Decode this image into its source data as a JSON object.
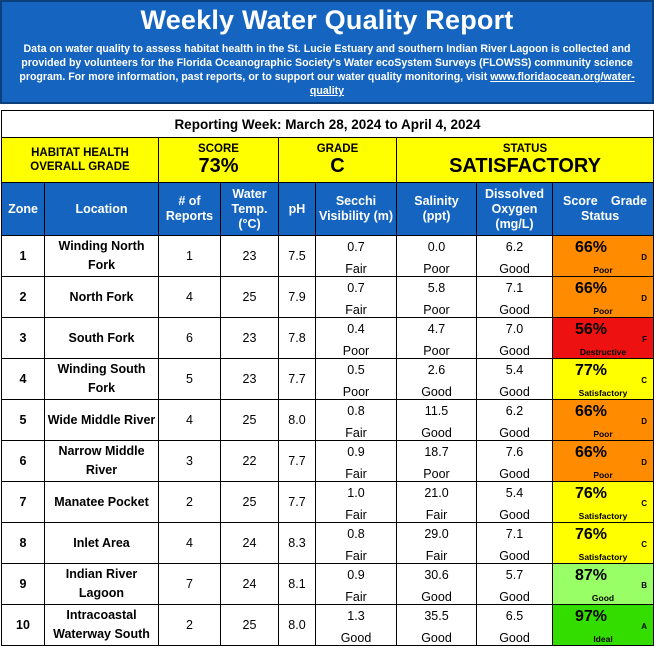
{
  "header": {
    "title": "Weekly Water Quality Report",
    "description_main": "Data on water quality to assess habitat health in the St. Lucie Estuary and southern Indian River Lagoon is collected and provided by volunteers for the Florida Oceanographic Society's Water ecoSystem Surveys (FLOWSS) community science program.  For more information, past reports, or to support our water quality monitoring, visit ",
    "link_text": "www.floridaocean.org/water-quality"
  },
  "reporting_week": "Reporting Week: March 28, 2024 to April 4, 2024",
  "overall": {
    "label_line1": "HABITAT HEALTH",
    "label_line2": "OVERALL GRADE",
    "score_label": "SCORE",
    "score_value": "73%",
    "grade_label": "GRADE",
    "grade_value": "C",
    "status_label": "STATUS",
    "status_value": "SATISFACTORY",
    "color": "#ffff00"
  },
  "columns": {
    "zone": "Zone",
    "location": "Location",
    "reports_1": "# of",
    "reports_2": "Reports",
    "temp_1": "Water",
    "temp_2": "Temp.",
    "temp_3": "(°C)",
    "ph": "pH",
    "secchi_1": "Secchi",
    "secchi_2": "Visibility (m)",
    "salinity_1": "Salinity",
    "salinity_2": "(ppt)",
    "do_1": "Dissolved",
    "do_2": "Oxygen",
    "do_3": "(mg/L)",
    "score": "Score",
    "grade": "Grade",
    "status": "Status"
  },
  "status_colors": {
    "Poor": "#ff8c00",
    "Destructive": "#ee1111",
    "Satisfactory": "#ffff00",
    "Good": "#99ff66",
    "Ideal": "#33dd00"
  },
  "rows": [
    {
      "zone": "1",
      "loc1": "Winding North",
      "loc2": "Fork",
      "reports": "1",
      "temp": "23",
      "ph": "7.5",
      "secchi": "0.7",
      "secchi_c": "Fair",
      "sal": "0.0",
      "sal_c": "Poor",
      "do": "6.2",
      "do_c": "Good",
      "score": "66%",
      "grade": "D",
      "status": "Poor",
      "color": "#ff8c00"
    },
    {
      "zone": "2",
      "loc1": "North Fork",
      "loc2": "",
      "reports": "4",
      "temp": "25",
      "ph": "7.9",
      "secchi": "0.7",
      "secchi_c": "Fair",
      "sal": "5.8",
      "sal_c": "Poor",
      "do": "7.1",
      "do_c": "Good",
      "score": "66%",
      "grade": "D",
      "status": "Poor",
      "color": "#ff8c00"
    },
    {
      "zone": "3",
      "loc1": "South Fork",
      "loc2": "",
      "reports": "6",
      "temp": "23",
      "ph": "7.8",
      "secchi": "0.4",
      "secchi_c": "Poor",
      "sal": "4.7",
      "sal_c": "Poor",
      "do": "7.0",
      "do_c": "Good",
      "score": "56%",
      "grade": "F",
      "status": "Destructive",
      "color": "#ee1111"
    },
    {
      "zone": "4",
      "loc1": "Winding South",
      "loc2": "Fork",
      "reports": "5",
      "temp": "23",
      "ph": "7.7",
      "secchi": "0.5",
      "secchi_c": "Poor",
      "sal": "2.6",
      "sal_c": "Good",
      "do": "5.4",
      "do_c": "Good",
      "score": "77%",
      "grade": "C",
      "status": "Satisfactory",
      "color": "#ffff00"
    },
    {
      "zone": "5",
      "loc1": "Wide Middle River",
      "loc2": "",
      "reports": "4",
      "temp": "25",
      "ph": "8.0",
      "secchi": "0.8",
      "secchi_c": "Fair",
      "sal": "11.5",
      "sal_c": "Good",
      "do": "6.2",
      "do_c": "Good",
      "score": "66%",
      "grade": "D",
      "status": "Poor",
      "color": "#ff8c00"
    },
    {
      "zone": "6",
      "loc1": "Narrow Middle",
      "loc2": "River",
      "reports": "3",
      "temp": "22",
      "ph": "7.7",
      "secchi": "0.9",
      "secchi_c": "Fair",
      "sal": "18.7",
      "sal_c": "Poor",
      "do": "7.6",
      "do_c": "Good",
      "score": "66%",
      "grade": "D",
      "status": "Poor",
      "color": "#ff8c00"
    },
    {
      "zone": "7",
      "loc1": "Manatee Pocket",
      "loc2": "",
      "reports": "2",
      "temp": "25",
      "ph": "7.7",
      "secchi": "1.0",
      "secchi_c": "Fair",
      "sal": "21.0",
      "sal_c": "Fair",
      "do": "5.4",
      "do_c": "Good",
      "score": "76%",
      "grade": "C",
      "status": "Satisfactory",
      "color": "#ffff00"
    },
    {
      "zone": "8",
      "loc1": "Inlet Area",
      "loc2": "",
      "reports": "4",
      "temp": "24",
      "ph": "8.3",
      "secchi": "0.8",
      "secchi_c": "Fair",
      "sal": "29.0",
      "sal_c": "Fair",
      "do": "7.1",
      "do_c": "Good",
      "score": "76%",
      "grade": "C",
      "status": "Satisfactory",
      "color": "#ffff00"
    },
    {
      "zone": "9",
      "loc1": "Indian River",
      "loc2": "Lagoon",
      "reports": "7",
      "temp": "24",
      "ph": "8.1",
      "secchi": "0.9",
      "secchi_c": "Fair",
      "sal": "30.6",
      "sal_c": "Good",
      "do": "5.7",
      "do_c": "Good",
      "score": "87%",
      "grade": "B",
      "status": "Good",
      "color": "#99ff66"
    },
    {
      "zone": "10",
      "loc1": "Intracoastal",
      "loc2": "Waterway South",
      "reports": "2",
      "temp": "25",
      "ph": "8.0",
      "secchi": "1.3",
      "secchi_c": "Good",
      "sal": "35.5",
      "sal_c": "Good",
      "do": "6.5",
      "do_c": "Good",
      "score": "97%",
      "grade": "A",
      "status": "Ideal",
      "color": "#33dd00"
    }
  ]
}
